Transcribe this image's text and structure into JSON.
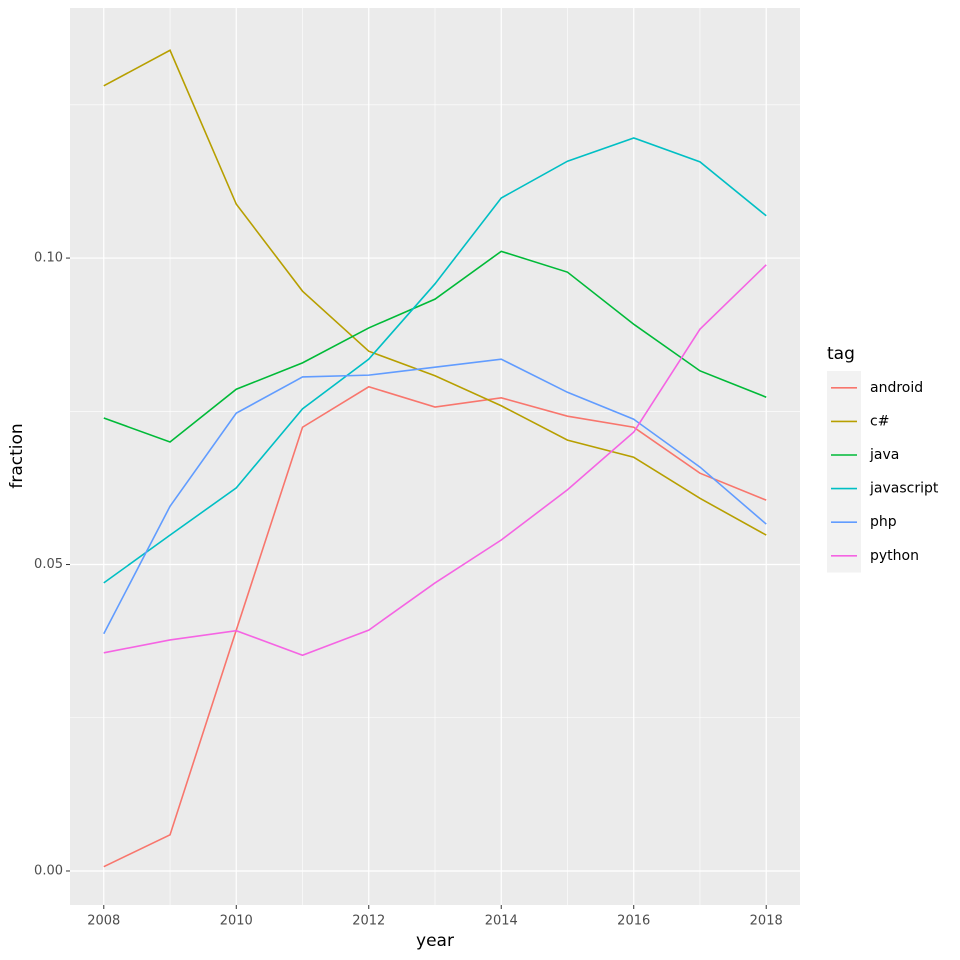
{
  "chart_data": {
    "type": "line",
    "x_label": "year",
    "y_label": "fraction",
    "legend_title": "tag",
    "legend": "right",
    "grid": true,
    "x": [
      2008,
      2009,
      2010,
      2011,
      2012,
      2013,
      2014,
      2015,
      2016,
      2017,
      2018
    ],
    "xlim": [
      2007.49,
      2018.51
    ],
    "xticks": [
      2008,
      2010,
      2012,
      2014,
      2016,
      2018
    ],
    "xminor": [
      2009,
      2011,
      2013,
      2015,
      2017
    ],
    "ylim": [
      -0.00555,
      0.1408
    ],
    "yticks": [
      {
        "value": 0,
        "label": "0.00"
      },
      {
        "value": 0.05,
        "label": "0.05"
      },
      {
        "value": 0.1,
        "label": "0.10"
      }
    ],
    "yminor": [
      0.025,
      0.075,
      0.125
    ],
    "series": [
      {
        "name": "android",
        "color": "#F8766D",
        "values": [
          0.0007,
          0.0059,
          0.0393,
          0.0724,
          0.079,
          0.0757,
          0.0772,
          0.0742,
          0.0724,
          0.0649,
          0.0605
        ]
      },
      {
        "name": "c#",
        "color": "#B79F00",
        "values": [
          0.1281,
          0.1339,
          0.1088,
          0.0946,
          0.0848,
          0.0808,
          0.0759,
          0.0703,
          0.0675,
          0.0608,
          0.0548
        ]
      },
      {
        "name": "java",
        "color": "#00BA38",
        "values": [
          0.0739,
          0.07,
          0.0786,
          0.0829,
          0.0886,
          0.0933,
          0.1011,
          0.0977,
          0.0892,
          0.0816,
          0.0773
        ]
      },
      {
        "name": "javascript",
        "color": "#00BFC4",
        "values": [
          0.047,
          0.0548,
          0.0625,
          0.0754,
          0.0835,
          0.0958,
          0.1098,
          0.1158,
          0.1196,
          0.1157,
          0.1069
        ]
      },
      {
        "name": "php",
        "color": "#619CFF",
        "values": [
          0.0387,
          0.0595,
          0.0747,
          0.0806,
          0.0809,
          0.0822,
          0.0835,
          0.0781,
          0.0737,
          0.0659,
          0.0566
        ]
      },
      {
        "name": "python",
        "color": "#F564E3",
        "values": [
          0.0356,
          0.0377,
          0.0392,
          0.0352,
          0.0393,
          0.047,
          0.054,
          0.0622,
          0.0716,
          0.0884,
          0.0989
        ]
      }
    ]
  }
}
